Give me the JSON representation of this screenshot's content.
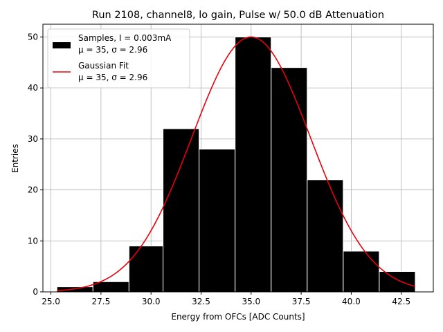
{
  "chart_data": {
    "type": "bar",
    "title": "Run 2108, channel8, lo gain, Pulse w/ 50.0 dB Attenuation",
    "xlabel": "Energy from OFCs [ADC Counts]",
    "ylabel": "Entries",
    "xlim": [
      24.6,
      44.1
    ],
    "ylim": [
      0,
      52.5
    ],
    "x_ticks": [
      25.0,
      27.5,
      30.0,
      32.5,
      35.0,
      37.5,
      40.0,
      42.5
    ],
    "x_tick_labels": [
      "25.0",
      "27.5",
      "30.0",
      "32.5",
      "35.0",
      "37.5",
      "40.0",
      "42.5"
    ],
    "y_ticks": [
      0,
      10,
      20,
      30,
      40,
      50
    ],
    "y_tick_labels": [
      "0",
      "10",
      "20",
      "30",
      "40",
      "50"
    ],
    "grid": true,
    "legend_position": "top-left",
    "series": [
      {
        "name": "Samples, I = 0.003mA",
        "stats_label": "μ = 35, σ = 2.96",
        "kind": "histogram",
        "color": "#000000",
        "edge_color": "#ffffff",
        "bin_edges": [
          25.3,
          27.1,
          28.9,
          30.6,
          32.4,
          34.2,
          36.0,
          37.8,
          39.6,
          41.4,
          43.2
        ],
        "counts": [
          1,
          2,
          9,
          32,
          28,
          50,
          44,
          22,
          8,
          4
        ]
      },
      {
        "name": "Gaussian Fit",
        "stats_label": "μ = 35, σ = 2.96",
        "kind": "line",
        "color": "#e8000b",
        "mu": 35.0,
        "sigma": 2.96,
        "amplitude": 50.0,
        "x_range": [
          25.3,
          43.2
        ]
      }
    ]
  }
}
